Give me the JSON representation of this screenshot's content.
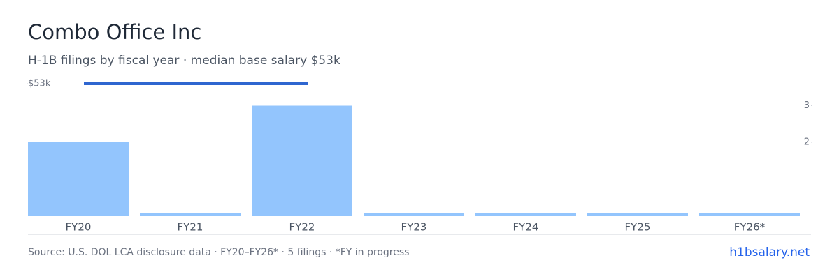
{
  "chart_data": {
    "type": "bar",
    "title": "Combo Office Inc",
    "subtitle": "H-1B filings by fiscal year · median base salary $53k",
    "categories": [
      "FY20",
      "FY21",
      "FY22",
      "FY23",
      "FY24",
      "FY25",
      "FY26*"
    ],
    "series": [
      {
        "type": "bar",
        "axis": "y2",
        "color": "#93c5fd",
        "values": [
          2,
          0,
          3,
          0,
          0,
          0,
          0
        ]
      },
      {
        "type": "line",
        "color": "#2f66d0",
        "values": [
          53000,
          53000,
          53000,
          null,
          null,
          null,
          null
        ]
      }
    ],
    "ylim": [
      0,
      53000
    ],
    "yticks": [
      {
        "value": 53000,
        "label": "$53k"
      }
    ],
    "y2lim": [
      0,
      3.6
    ],
    "y2ticks": [
      2,
      3
    ],
    "grid": false
  },
  "footer": {
    "source": "Source: U.S. DOL LCA disclosure data · FY20–FY26* · 5 filings · *FY in progress",
    "link": "h1bsalary.net"
  }
}
